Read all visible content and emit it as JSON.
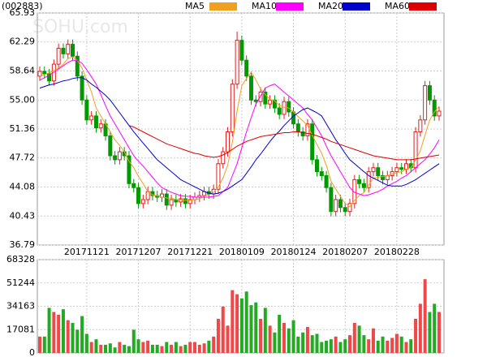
{
  "chart_data": [
    {
      "type": "candlestick",
      "title": "(002883)",
      "watermark": "SOHU.com",
      "categories": [
        null,
        null,
        null,
        null,
        null,
        null,
        null,
        null,
        null,
        null,
        "20171121",
        null,
        null,
        null,
        null,
        null,
        null,
        null,
        null,
        null,
        null,
        "20171207",
        null,
        null,
        null,
        null,
        null,
        null,
        null,
        null,
        null,
        null,
        "20171221",
        null,
        null,
        null,
        null,
        null,
        null,
        null,
        null,
        null,
        null,
        "20180109",
        null,
        null,
        null,
        null,
        null,
        null,
        null,
        null,
        null,
        null,
        "20180124",
        null,
        null,
        null,
        null,
        null,
        null,
        null,
        null,
        null,
        null,
        "20180207",
        null,
        null,
        null,
        null,
        null,
        null,
        null,
        null,
        null,
        null,
        "20180228",
        null,
        null,
        null,
        null,
        null,
        null,
        null,
        null,
        null
      ],
      "open": [
        58.0,
        58.6,
        58.3,
        57.4,
        59.5,
        61.5,
        60.8,
        62.0,
        60.5,
        58.0,
        55.0,
        52.5,
        53.0,
        51.5,
        52.0,
        50.5,
        48.0,
        47.5,
        48.5,
        48.0,
        44.5,
        44.0,
        42.0,
        42.5,
        43.5,
        43.0,
        42.8,
        43.2,
        41.8,
        42.5,
        42.2,
        42.6,
        42.0,
        42.5,
        42.8,
        43.0,
        43.5,
        43.2,
        43.8,
        47.0,
        48.5,
        51.0,
        57.0,
        62.5,
        60.0,
        58.0,
        55.0,
        54.8,
        56.0,
        54.5,
        55.0,
        54.0,
        53.2,
        54.8,
        53.5,
        52.0,
        51.0,
        50.5,
        52.0,
        47.5,
        46.0,
        45.5,
        44.0,
        41.0,
        42.5,
        41.5,
        41.0,
        42.0,
        45.0,
        44.5,
        44.0,
        46.0,
        46.5,
        45.5,
        45.0,
        45.5,
        46.0,
        46.5,
        46.3,
        47.0,
        46.5,
        51.0,
        52.5,
        56.8,
        55.0,
        53.0
      ],
      "high": [
        59.2,
        59.2,
        58.9,
        60.1,
        62.1,
        62.1,
        62.6,
        62.6,
        61.1,
        58.6,
        55.6,
        53.6,
        53.6,
        52.6,
        52.6,
        51.1,
        48.6,
        49.1,
        49.1,
        48.6,
        45.1,
        44.6,
        43.1,
        44.1,
        44.1,
        43.6,
        43.8,
        43.8,
        43.1,
        43.1,
        43.2,
        43.2,
        43.1,
        43.4,
        43.6,
        44.1,
        44.1,
        44.4,
        47.6,
        49.1,
        51.6,
        57.6,
        63.6,
        63.1,
        60.6,
        58.6,
        55.6,
        56.6,
        56.6,
        55.6,
        55.6,
        54.6,
        55.4,
        55.4,
        54.1,
        52.6,
        51.6,
        52.6,
        52.6,
        48.1,
        46.6,
        46.1,
        44.6,
        43.1,
        43.1,
        42.1,
        42.6,
        45.6,
        45.6,
        45.1,
        46.6,
        47.1,
        47.1,
        46.1,
        46.1,
        46.6,
        47.1,
        47.1,
        47.6,
        47.6,
        51.6,
        53.1,
        57.4,
        57.4,
        55.6,
        54.2
      ],
      "low": [
        57.4,
        57.7,
        56.8,
        56.8,
        58.9,
        60.2,
        60.2,
        59.9,
        57.4,
        54.4,
        51.9,
        51.9,
        50.9,
        50.9,
        49.9,
        47.4,
        46.9,
        46.9,
        47.4,
        43.9,
        43.4,
        41.4,
        41.4,
        41.9,
        42.4,
        42.2,
        42.2,
        41.2,
        41.2,
        41.6,
        41.6,
        41.4,
        41.4,
        41.9,
        42.2,
        42.4,
        42.6,
        42.6,
        43.2,
        46.4,
        47.9,
        50.4,
        56.4,
        59.4,
        57.4,
        54.4,
        54.2,
        54.2,
        53.9,
        53.9,
        53.4,
        52.6,
        52.6,
        52.9,
        51.4,
        50.4,
        49.9,
        49.9,
        46.9,
        45.4,
        44.9,
        43.4,
        40.4,
        40.4,
        40.9,
        40.4,
        40.4,
        41.4,
        43.9,
        43.4,
        43.4,
        45.4,
        44.9,
        44.4,
        44.4,
        44.9,
        45.4,
        45.7,
        45.7,
        45.9,
        45.9,
        50.4,
        51.9,
        54.4,
        52.4,
        52.4
      ],
      "close": [
        58.6,
        58.3,
        57.4,
        59.5,
        61.5,
        60.8,
        62.0,
        60.5,
        58.0,
        55.0,
        52.5,
        53.0,
        51.5,
        52.0,
        50.5,
        48.0,
        47.5,
        48.5,
        48.0,
        44.5,
        44.0,
        42.0,
        42.5,
        43.5,
        43.0,
        42.8,
        43.2,
        41.8,
        42.5,
        42.2,
        42.6,
        42.0,
        42.5,
        42.8,
        43.0,
        43.5,
        43.2,
        43.8,
        47.0,
        48.5,
        51.0,
        57.0,
        62.5,
        60.0,
        58.0,
        55.0,
        54.8,
        56.0,
        54.5,
        55.0,
        54.0,
        53.2,
        54.8,
        53.5,
        52.0,
        51.0,
        50.5,
        52.0,
        47.5,
        46.0,
        45.5,
        44.0,
        41.0,
        42.5,
        41.5,
        41.0,
        42.0,
        45.0,
        44.5,
        44.0,
        46.0,
        46.5,
        45.5,
        45.0,
        45.5,
        46.0,
        46.5,
        46.3,
        47.0,
        46.5,
        51.0,
        52.5,
        56.8,
        55.0,
        53.0,
        53.6
      ],
      "series": [
        {
          "name": "MA5",
          "color": "#f0a020",
          "values": [
            58.0,
            58.2,
            58.4,
            58.7,
            59.0,
            59.5,
            60.2,
            60.4,
            60.0,
            59.0,
            57.5,
            56.0,
            54.0,
            53.0,
            52.0,
            51.0,
            50.0,
            49.3,
            48.5,
            47.3,
            46.5,
            45.4,
            44.5,
            43.5,
            43.1,
            43.0,
            42.8,
            42.7,
            42.7,
            42.5,
            42.5,
            42.4,
            42.4,
            42.5,
            42.6,
            42.9,
            43.1,
            43.4,
            44.1,
            45.2,
            46.8,
            49.7,
            53.6,
            56.8,
            57.7,
            58.5,
            57.5,
            56.4,
            55.7,
            55.1,
            54.9,
            54.3,
            54.1,
            54.0,
            53.5,
            52.9,
            52.4,
            51.8,
            50.6,
            49.4,
            48.3,
            46.8,
            44.8,
            43.8,
            42.9,
            42.0,
            41.6,
            42.4,
            43.0,
            43.4,
            44.3,
            45.2,
            45.3,
            45.4,
            45.5,
            45.7,
            45.9,
            46.0,
            46.3,
            46.5,
            47.5,
            48.6,
            50.6,
            52.5,
            53.5,
            54.2
          ]
        },
        {
          "name": "MA10",
          "color": "#ff00ff",
          "values": [
            57.5,
            57.8,
            58.1,
            58.5,
            58.9,
            59.3,
            59.7,
            60.0,
            60.0,
            59.6,
            58.8,
            57.9,
            57.0,
            55.7,
            54.3,
            53.0,
            52.0,
            51.0,
            50.0,
            49.0,
            48.0,
            47.3,
            46.7,
            46.0,
            45.3,
            44.6,
            44.0,
            43.7,
            43.4,
            43.2,
            43.0,
            42.9,
            42.9,
            42.8,
            42.8,
            42.8,
            42.8,
            42.9,
            43.0,
            43.5,
            44.0,
            45.5,
            47.0,
            49.0,
            51.0,
            52.8,
            54.5,
            55.5,
            56.5,
            56.8,
            57.0,
            56.5,
            56.0,
            55.5,
            55.0,
            54.5,
            54.0,
            53.2,
            52.5,
            51.5,
            50.5,
            49.2,
            48.0,
            47.0,
            46.0,
            45.0,
            44.0,
            43.4,
            43.2,
            43.0,
            43.1,
            43.3,
            43.5,
            43.8,
            44.2,
            44.5,
            44.8,
            45.2,
            45.5,
            46.0,
            46.5,
            47.0,
            47.5,
            48.2,
            49.0,
            50.0
          ]
        },
        {
          "name": "MA20",
          "color": "#0000cc",
          "values": [
            56.5,
            56.7,
            56.9,
            57.0,
            57.2,
            57.4,
            57.5,
            57.7,
            57.8,
            57.8,
            57.5,
            57.0,
            56.6,
            56.1,
            55.6,
            55.0,
            54.2,
            53.4,
            52.6,
            51.8,
            51.0,
            50.3,
            49.6,
            48.9,
            48.2,
            47.5,
            47.0,
            46.5,
            46.0,
            45.5,
            45.0,
            44.7,
            44.4,
            44.1,
            43.8,
            43.5,
            43.3,
            43.2,
            43.3,
            43.5,
            43.8,
            44.2,
            44.6,
            45.0,
            45.8,
            46.6,
            47.5,
            48.2,
            49.0,
            49.8,
            50.5,
            51.1,
            51.8,
            52.4,
            53.0,
            53.4,
            53.8,
            54.0,
            53.7,
            53.4,
            53.0,
            52.0,
            51.0,
            50.0,
            49.2,
            48.3,
            47.5,
            47.0,
            46.5,
            46.0,
            45.5,
            45.2,
            44.9,
            44.6,
            44.3,
            44.2,
            44.2,
            44.2,
            44.4,
            44.7,
            45.0,
            45.4,
            45.8,
            46.2,
            46.6,
            47.0
          ]
        },
        {
          "name": "MA60",
          "color": "#dd0000",
          "values": [
            null,
            null,
            null,
            null,
            null,
            null,
            null,
            null,
            null,
            null,
            null,
            null,
            null,
            null,
            null,
            null,
            null,
            null,
            null,
            51.8,
            51.6,
            51.3,
            51.0,
            50.7,
            50.4,
            50.1,
            49.8,
            49.5,
            49.3,
            49.1,
            48.9,
            48.7,
            48.5,
            48.3,
            48.2,
            48.0,
            47.9,
            47.8,
            47.9,
            48.1,
            48.4,
            48.8,
            49.2,
            49.5,
            49.8,
            50.0,
            50.2,
            50.4,
            50.5,
            50.6,
            50.7,
            50.8,
            50.9,
            50.9,
            51.0,
            51.0,
            50.9,
            50.8,
            50.7,
            50.5,
            50.3,
            50.1,
            49.8,
            49.6,
            49.4,
            49.2,
            49.0,
            48.8,
            48.6,
            48.4,
            48.2,
            48.0,
            47.9,
            47.8,
            47.7,
            47.6,
            47.5,
            47.5,
            47.5,
            47.5,
            47.6,
            47.7,
            47.8,
            47.9,
            48.0,
            48.1
          ]
        }
      ],
      "ylim": [
        36.79,
        65.93
      ],
      "yticks": [
        36.79,
        40.43,
        44.08,
        47.72,
        51.36,
        {
          "value": 55.0,
          "label": "55.00"
        },
        58.64,
        62.29,
        65.93
      ],
      "up_color": "#e02020",
      "down_color": "#009900",
      "grid": true
    },
    {
      "type": "bar",
      "values": [
        12000,
        12000,
        33000,
        30000,
        28000,
        32000,
        24000,
        22000,
        17000,
        27000,
        14000,
        8000,
        10000,
        6000,
        6000,
        7000,
        4000,
        8000,
        6000,
        5000,
        17000,
        10000,
        8000,
        9000,
        6000,
        6000,
        5000,
        8000,
        6000,
        8000,
        5000,
        6000,
        8000,
        8000,
        6000,
        7000,
        9000,
        12000,
        25000,
        34000,
        20000,
        46000,
        43000,
        40000,
        45000,
        35000,
        37000,
        25000,
        33000,
        20000,
        15000,
        28000,
        22000,
        18000,
        24000,
        12000,
        15000,
        19000,
        13000,
        14000,
        8000,
        9000,
        10000,
        12000,
        8000,
        10000,
        13000,
        22000,
        20000,
        13000,
        10000,
        18000,
        9000,
        12000,
        9000,
        11000,
        14000,
        12000,
        8000,
        10000,
        25000,
        36000,
        54000,
        30000,
        36000,
        30000
      ],
      "ylim": [
        0,
        68328
      ],
      "yticks": [
        0,
        17081,
        34163,
        51244,
        68328
      ]
    }
  ]
}
